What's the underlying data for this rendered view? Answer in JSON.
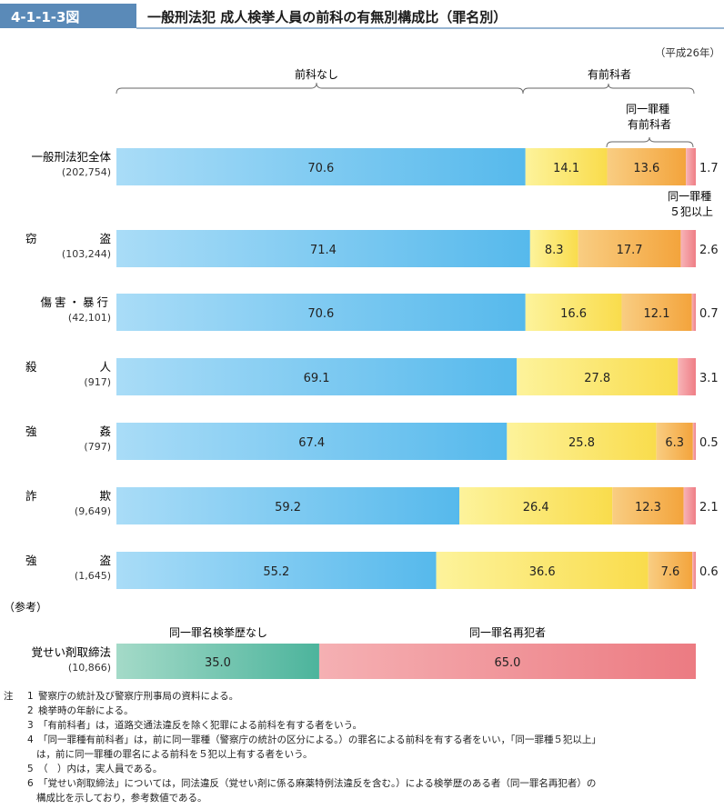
{
  "figure": {
    "number": "4-1-1-3図",
    "title": "一般刑法犯 成人検挙人員の前科の有無別構成比（罪名別）",
    "year_note": "（平成26年）"
  },
  "chart_data": {
    "type": "bar",
    "orientation": "horizontal",
    "stacked": "percent",
    "group_headers": {
      "no_prior": "前科なし",
      "with_prior": "有前科者",
      "same_crime_prior": "同一罪種\n有前科者",
      "same_crime_5plus": "同一罪種\n５犯以上"
    },
    "categories": [
      {
        "label": "一般刑法犯全体",
        "count": "(202,754)"
      },
      {
        "label": "窃盗",
        "count": "(103,244)"
      },
      {
        "label": "傷害・暴行",
        "count": "(42,101)"
      },
      {
        "label": "殺人",
        "count": "(917)"
      },
      {
        "label": "強姦",
        "count": "(797)"
      },
      {
        "label": "詐欺",
        "count": "(9,649)"
      },
      {
        "label": "強盗",
        "count": "(1,645)"
      }
    ],
    "series": [
      {
        "key": "no_prior",
        "color_from": "#a9dcf7",
        "color_to": "#56b9ec",
        "values": [
          70.6,
          71.4,
          70.6,
          69.1,
          67.4,
          59.2,
          55.2
        ],
        "labels": [
          "70.6",
          "71.4",
          "70.6",
          "69.1",
          "67.4",
          "59.2",
          "55.2"
        ]
      },
      {
        "key": "other_prior",
        "color_from": "#fdf39b",
        "color_to": "#f9dc4c",
        "values": [
          14.1,
          8.3,
          16.6,
          27.8,
          25.8,
          26.4,
          36.6
        ],
        "labels": [
          "14.1",
          "8.3",
          "16.6",
          "27.8",
          "25.8",
          "26.4",
          "36.6"
        ]
      },
      {
        "key": "same_crime_prior",
        "color_from": "#f9cd82",
        "color_to": "#f3a43c",
        "values": [
          13.6,
          17.7,
          12.1,
          0,
          6.3,
          12.3,
          7.6
        ],
        "labels": [
          "13.6",
          "17.7",
          "12.1",
          "",
          "6.3",
          "12.3",
          "7.6"
        ]
      },
      {
        "key": "same_crime_5plus",
        "color_from": "#f7b4b7",
        "color_to": "#ef7e86",
        "values": [
          1.7,
          2.6,
          0.7,
          3.1,
          0.5,
          2.1,
          0.6
        ],
        "labels": [
          "1.7",
          "2.6",
          "0.7",
          "3.1",
          "0.5",
          "2.1",
          "0.6"
        ]
      }
    ],
    "xlim": [
      0,
      100
    ],
    "reference": {
      "heading": "（参考）",
      "label": "覚せい剤取締法",
      "count": "(10,866)",
      "series": [
        {
          "name": "同一罪名検挙歴なし",
          "color_from": "#a4dac8",
          "color_to": "#4cb49c",
          "value": 35.0,
          "label": "35.0"
        },
        {
          "name": "同一罪名再犯者",
          "color_from": "#f5b0b3",
          "color_to": "#ec7b82",
          "value": 65.0,
          "label": "65.0"
        }
      ]
    }
  },
  "notes": [
    {
      "marker": "注",
      "num": "1",
      "text": "警察庁の統計及び警察庁刑事局の資料による。"
    },
    {
      "marker": "",
      "num": "2",
      "text": "検挙時の年齢による。"
    },
    {
      "marker": "",
      "num": "3",
      "text": "「有前科者」は，道路交通法違反を除く犯罪による前科を有する者をいう。"
    },
    {
      "marker": "",
      "num": "4",
      "text": "「同一罪種有前科者」は，前に同一罪種（警察庁の統計の区分による。）の罪名による前科を有する者をいい，「同一罪種５犯以上」"
    },
    {
      "marker": "",
      "num": "",
      "text": "は，前に同一罪種の罪名による前科を５犯以上有する者をいう。"
    },
    {
      "marker": "",
      "num": "5",
      "text": "（　）内は，実人員である。"
    },
    {
      "marker": "",
      "num": "6",
      "text": "「覚せい剤取締法」については，同法違反（覚せい剤に係る麻薬特例法違反を含む。）による検挙歴のある者（同一罪名再犯者）の"
    },
    {
      "marker": "",
      "num": "",
      "text": "構成比を示しており，参考数値である。"
    }
  ]
}
